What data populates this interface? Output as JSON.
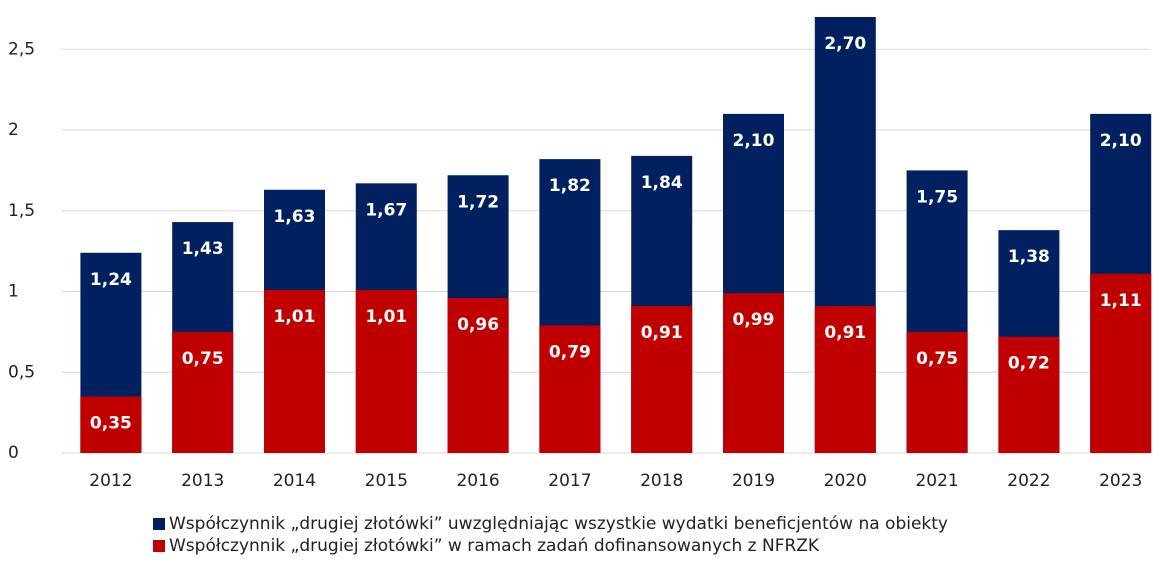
{
  "chart_data": {
    "type": "bar",
    "overlap": true,
    "categories": [
      "2012",
      "2013",
      "2014",
      "2015",
      "2016",
      "2017",
      "2018",
      "2019",
      "2020",
      "2021",
      "2022",
      "2023"
    ],
    "series": [
      {
        "name": "Współczynnik „drugiej złotówki” uwzględniając wszystkie wydatki beneficjentów na obiekty",
        "color": "#002060",
        "values": [
          1.24,
          1.43,
          1.63,
          1.67,
          1.72,
          1.82,
          1.84,
          2.1,
          2.7,
          1.75,
          1.38,
          2.1
        ],
        "value_labels": [
          "1,24",
          "1,43",
          "1,63",
          "1,67",
          "1,72",
          "1,82",
          "1,84",
          "2,10",
          "2,70",
          "1,75",
          "1,38",
          "2,10"
        ]
      },
      {
        "name": "Współczynnik „drugiej złotówki” w ramach zadań dofinansowanych z NFRZK",
        "color": "#c00000",
        "values": [
          0.35,
          0.75,
          1.01,
          1.01,
          0.96,
          0.79,
          0.91,
          0.99,
          0.91,
          0.75,
          0.72,
          1.11
        ],
        "value_labels": [
          "0,35",
          "0,75",
          "1,01",
          "1,01",
          "0,96",
          "0,79",
          "0,91",
          "0,99",
          "0,91",
          "0,75",
          "0,72",
          "1,11"
        ]
      }
    ],
    "ylim": [
      0,
      2.7
    ],
    "yticks": [
      0,
      {
        "value": 0.5,
        "label": "0,5"
      },
      1,
      {
        "value": 1.5,
        "label": "1,5"
      },
      2,
      {
        "value": 2.5,
        "label": "2,5"
      }
    ],
    "grid": true,
    "legend": "bottom"
  }
}
